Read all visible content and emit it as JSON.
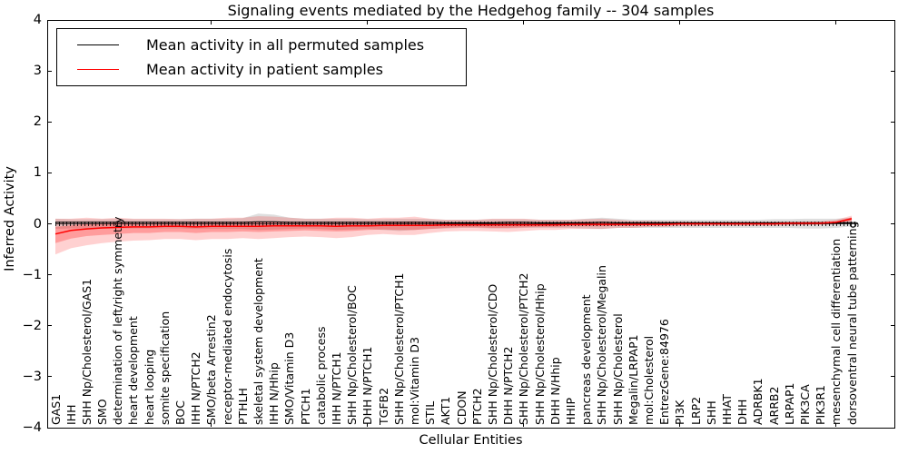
{
  "title": "Signaling events mediated by the Hedgehog family -- 304 samples",
  "legend": [
    {
      "label": "Mean activity in all permuted samples",
      "color": "#000000"
    },
    {
      "label": "Mean activity in patient samples",
      "color": "#ff0000"
    }
  ],
  "chart_data": {
    "type": "line",
    "title": "Signaling events mediated by the Hedgehog family -- 304 samples",
    "xlabel": "Cellular Entities",
    "ylabel": "Inferred Activity",
    "ylim": [
      -4,
      4
    ],
    "grid": false,
    "legend_position": "upper left",
    "zero_line": true,
    "yticks": [
      {
        "value": 4,
        "label": "4"
      },
      {
        "value": 3,
        "label": "3"
      },
      {
        "value": 2,
        "label": "2"
      },
      {
        "value": 1,
        "label": "1"
      },
      {
        "value": 0,
        "label": "0"
      },
      {
        "value": -1,
        "label": "−1"
      },
      {
        "value": -2,
        "label": "−2"
      },
      {
        "value": -3,
        "label": "−3"
      },
      {
        "value": -4,
        "label": "−4"
      }
    ],
    "top_tick_category_indices": [
      10,
      20,
      30,
      40,
      50
    ],
    "categories": [
      "GAS1",
      "IHH",
      "SHH Np/Cholesterol/GAS1",
      "SMO",
      "determination of left/right symmetry",
      "heart development",
      "heart looping",
      "somite specification",
      "BOC",
      "IHH N/PTCH2",
      "SMO/beta Arrestin2",
      "receptor-mediated endocytosis",
      "PTHLH",
      "skeletal system development",
      "IHH N/Hhip",
      "SMO/Vitamin D3",
      "PTCH1",
      "catabolic process",
      "IHH N/PTCH1",
      "SHH Np/Cholesterol/BOC",
      "DHH N/PTCH1",
      "TGFB2",
      "SHH Np/Cholesterol/PTCH1",
      "mol:Vitamin D3",
      "STIL",
      "AKT1",
      "CDON",
      "PTCH2",
      "SHH Np/Cholesterol/CDO",
      "DHH N/PTCH2",
      "SHH Np/Cholesterol/PTCH2",
      "SHH Np/Cholesterol/Hhip",
      "DHH N/Hhip",
      "HHIP",
      "pancreas development",
      "SHH Np/Cholesterol/Megalin",
      "SHH Np/Cholesterol",
      "Megalin/LRPAP1",
      "mol:Cholesterol",
      "EntrezGene:84976",
      "PI3K",
      "LRP2",
      "SHH",
      "HHAT",
      "DHH",
      "ADRBK1",
      "ARRB2",
      "LRPAP1",
      "PIK3CA",
      "PIK3R1",
      "mesenchymal cell differentiation",
      "dorsoventral neural tube patterning"
    ],
    "series": [
      {
        "name": "Mean activity in all permuted samples",
        "color": "#000000",
        "width": 1.2,
        "values": [
          0.03,
          0.03,
          0.03,
          0.03,
          0.03,
          0.03,
          0.03,
          0.03,
          0.03,
          0.03,
          0.03,
          0.03,
          0.03,
          0.04,
          0.04,
          0.03,
          0.03,
          0.03,
          0.03,
          0.03,
          0.03,
          0.03,
          0.03,
          0.03,
          0.03,
          0.02,
          0.02,
          0.02,
          0.02,
          0.03,
          0.03,
          0.02,
          0.02,
          0.02,
          0.02,
          0.03,
          0.02,
          0.02,
          0.02,
          0.02,
          0.02,
          0.02,
          0.02,
          0.02,
          0.02,
          0.02,
          0.02,
          0.02,
          0.02,
          0.02,
          0.02,
          0.02
        ]
      },
      {
        "name": "Mean activity in patient samples",
        "color": "#ff0000",
        "width": 1.5,
        "values": [
          -0.2,
          -0.13,
          -0.1,
          -0.08,
          -0.07,
          -0.06,
          -0.06,
          -0.05,
          -0.05,
          -0.06,
          -0.05,
          -0.05,
          -0.05,
          -0.05,
          -0.04,
          -0.04,
          -0.04,
          -0.04,
          -0.05,
          -0.04,
          -0.04,
          -0.03,
          -0.03,
          -0.03,
          -0.03,
          -0.02,
          -0.02,
          -0.02,
          -0.02,
          -0.02,
          -0.02,
          -0.02,
          -0.02,
          -0.01,
          -0.01,
          -0.01,
          -0.01,
          -0.01,
          -0.01,
          -0.01,
          0.0,
          0.0,
          0.0,
          0.0,
          0.0,
          0.0,
          0.0,
          0.01,
          0.01,
          0.01,
          0.03,
          0.1
        ]
      }
    ],
    "bands": [
      {
        "name": "permuted-samples-range",
        "color": "#999999",
        "opacity": 0.32,
        "upper": [
          0.1,
          0.09,
          0.09,
          0.09,
          0.1,
          0.09,
          0.09,
          0.09,
          0.09,
          0.1,
          0.1,
          0.1,
          0.11,
          0.2,
          0.18,
          0.12,
          0.1,
          0.1,
          0.1,
          0.1,
          0.09,
          0.09,
          0.1,
          0.1,
          0.09,
          0.08,
          0.08,
          0.08,
          0.09,
          0.09,
          0.09,
          0.08,
          0.08,
          0.08,
          0.1,
          0.12,
          0.1,
          0.08,
          0.08,
          0.08,
          0.08,
          0.08,
          0.08,
          0.08,
          0.08,
          0.08,
          0.09,
          0.09,
          0.1,
          0.1,
          0.1,
          0.12
        ],
        "lower": [
          -0.1,
          -0.09,
          -0.09,
          -0.09,
          -0.09,
          -0.09,
          -0.09,
          -0.09,
          -0.09,
          -0.1,
          -0.1,
          -0.1,
          -0.1,
          -0.12,
          -0.11,
          -0.1,
          -0.09,
          -0.1,
          -0.12,
          -0.11,
          -0.1,
          -0.12,
          -0.14,
          -0.12,
          -0.1,
          -0.09,
          -0.08,
          -0.08,
          -0.09,
          -0.09,
          -0.08,
          -0.08,
          -0.08,
          -0.08,
          -0.09,
          -0.1,
          -0.08,
          -0.08,
          -0.08,
          -0.08,
          -0.08,
          -0.08,
          -0.08,
          -0.08,
          -0.08,
          -0.08,
          -0.08,
          -0.08,
          -0.09,
          -0.09,
          -0.08,
          -0.05
        ]
      },
      {
        "name": "patient-samples-range-outer",
        "color": "#ff0000",
        "opacity": 0.18,
        "upper": [
          0.1,
          0.1,
          0.12,
          0.1,
          0.12,
          0.1,
          0.1,
          0.1,
          0.09,
          0.1,
          0.1,
          0.12,
          0.12,
          0.15,
          0.14,
          0.12,
          0.1,
          0.1,
          0.12,
          0.12,
          0.1,
          0.12,
          0.12,
          0.14,
          0.1,
          0.08,
          0.08,
          0.08,
          0.1,
          0.1,
          0.1,
          0.08,
          0.08,
          0.08,
          0.09,
          0.1,
          0.08,
          0.06,
          0.06,
          0.05,
          0.05,
          0.04,
          0.04,
          0.04,
          0.04,
          0.04,
          0.04,
          0.04,
          0.05,
          0.05,
          0.08,
          0.16
        ],
        "lower": [
          -0.6,
          -0.48,
          -0.42,
          -0.38,
          -0.35,
          -0.33,
          -0.32,
          -0.3,
          -0.3,
          -0.32,
          -0.3,
          -0.3,
          -0.28,
          -0.3,
          -0.28,
          -0.26,
          -0.25,
          -0.26,
          -0.28,
          -0.26,
          -0.22,
          -0.2,
          -0.22,
          -0.22,
          -0.18,
          -0.15,
          -0.14,
          -0.14,
          -0.15,
          -0.16,
          -0.14,
          -0.12,
          -0.12,
          -0.1,
          -0.1,
          -0.1,
          -0.08,
          -0.08,
          -0.06,
          -0.06,
          -0.05,
          -0.05,
          -0.04,
          -0.04,
          -0.04,
          -0.04,
          -0.04,
          -0.03,
          -0.03,
          -0.02,
          -0.01,
          0.02
        ]
      },
      {
        "name": "patient-samples-range-inner",
        "color": "#ff0000",
        "opacity": 0.25,
        "upper": [
          -0.06,
          -0.03,
          0.0,
          0.01,
          0.02,
          0.01,
          0.01,
          0.02,
          0.01,
          0.02,
          0.02,
          0.03,
          0.03,
          0.04,
          0.04,
          0.03,
          0.02,
          0.02,
          0.03,
          0.03,
          0.02,
          0.04,
          0.04,
          0.05,
          0.03,
          0.03,
          0.03,
          0.03,
          0.03,
          0.03,
          0.03,
          0.03,
          0.03,
          0.03,
          0.04,
          0.04,
          0.03,
          0.02,
          0.02,
          0.02,
          0.02,
          0.02,
          0.02,
          0.02,
          0.02,
          0.02,
          0.02,
          0.03,
          0.03,
          0.03,
          0.05,
          0.13
        ],
        "lower": [
          -0.38,
          -0.29,
          -0.24,
          -0.22,
          -0.2,
          -0.18,
          -0.18,
          -0.16,
          -0.16,
          -0.18,
          -0.16,
          -0.16,
          -0.15,
          -0.16,
          -0.15,
          -0.14,
          -0.13,
          -0.14,
          -0.15,
          -0.14,
          -0.12,
          -0.11,
          -0.12,
          -0.12,
          -0.1,
          -0.08,
          -0.07,
          -0.07,
          -0.08,
          -0.08,
          -0.07,
          -0.06,
          -0.06,
          -0.05,
          -0.05,
          -0.05,
          -0.04,
          -0.04,
          -0.03,
          -0.03,
          -0.02,
          -0.02,
          -0.02,
          -0.02,
          -0.02,
          -0.02,
          -0.02,
          -0.01,
          -0.01,
          0.0,
          0.01,
          0.06
        ]
      }
    ]
  }
}
